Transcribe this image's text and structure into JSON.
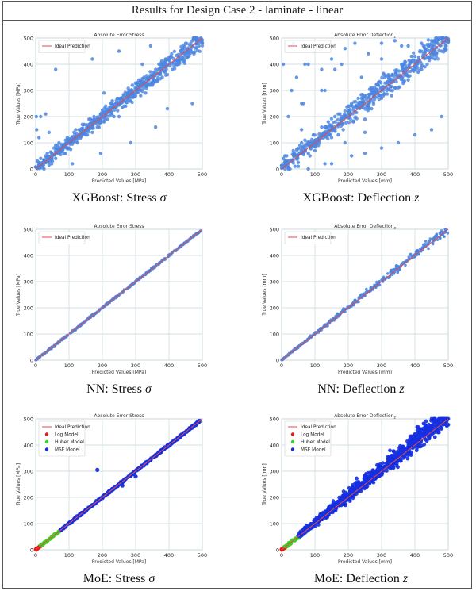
{
  "header": {
    "title": "Results for Design Case 2 - laminate - linear"
  },
  "colors": {
    "ideal": "#e8494c",
    "xgb_point": "#4c86e0",
    "nn_point": "#4c86e0",
    "log": "#e51b1b",
    "huber": "#3ecf23",
    "mse": "#1530e0",
    "grid": "#c9d9de"
  },
  "captions": [
    {
      "prefix": "XGBoost: Stress ",
      "symbol": "σ"
    },
    {
      "prefix": "XGBoost: Deflection ",
      "symbol": "z"
    },
    {
      "prefix": "NN: Stress ",
      "symbol": "σ"
    },
    {
      "prefix": "NN: Deflection ",
      "symbol": "z"
    },
    {
      "prefix": "MoE: Stress ",
      "symbol": "σ"
    },
    {
      "prefix": "MoE: Deflection ",
      "symbol": "z"
    }
  ],
  "chart_data": [
    {
      "type": "scatter",
      "title": "Absolute Error Stress",
      "xlabel": "Predicted Values [MPa]",
      "ylabel": "True Values [MPa]",
      "xlim": [
        0,
        500
      ],
      "ylim": [
        0,
        500
      ],
      "xticks": [
        0,
        100,
        200,
        300,
        400,
        500
      ],
      "yticks": [
        0,
        100,
        200,
        300,
        400,
        500
      ],
      "grid": true,
      "legend_position": "top-left",
      "series": [
        {
          "name": "Ideal Prediction",
          "kind": "line",
          "x": [
            0,
            500
          ],
          "y": [
            0,
            500
          ]
        },
        {
          "kind": "points",
          "note": "dense scatter about the diagonal, wide spread",
          "x": [
            10,
            20,
            35,
            50,
            60,
            80,
            95,
            110,
            130,
            150,
            160,
            185,
            200,
            215,
            240,
            260,
            280,
            300,
            320,
            340,
            360,
            380,
            400,
            420,
            440,
            460,
            480,
            15,
            40,
            70,
            100,
            140,
            170,
            210,
            250,
            290,
            330,
            370,
            410,
            450,
            490,
            5,
            25,
            55,
            85,
            120,
            175,
            230,
            270,
            310,
            350,
            390,
            430,
            470,
            8,
            30,
            60,
            90,
            125,
            165,
            205,
            245,
            285,
            325,
            365,
            405,
            445,
            485,
            12,
            45,
            75,
            115,
            155,
            195,
            235,
            275,
            315,
            355,
            395,
            435,
            475,
            20,
            65,
            105,
            145,
            190,
            225,
            265,
            305,
            345,
            385,
            425,
            465,
            2,
            3,
            48,
            10,
            30,
            110,
            195,
            360,
            345,
            15,
            250,
            395,
            170,
            470,
            40,
            320,
            205,
            90,
            285,
            60
          ],
          "y": [
            25,
            5,
            60,
            30,
            90,
            70,
            120,
            95,
            150,
            130,
            190,
            160,
            225,
            190,
            250,
            235,
            300,
            280,
            345,
            320,
            380,
            350,
            420,
            400,
            460,
            430,
            500,
            40,
            15,
            100,
            80,
            170,
            140,
            240,
            200,
            320,
            290,
            400,
            380,
            480,
            470,
            30,
            0,
            80,
            60,
            150,
            200,
            260,
            240,
            340,
            320,
            420,
            400,
            490,
            5,
            50,
            40,
            110,
            100,
            190,
            180,
            270,
            260,
            350,
            340,
            430,
            420,
            490,
            2,
            65,
            55,
            140,
            130,
            210,
            200,
            290,
            280,
            370,
            360,
            450,
            440,
            15,
            90,
            75,
            170,
            160,
            250,
            240,
            330,
            320,
            410,
            400,
            480,
            200,
            150,
            20,
            120,
            210,
            20,
            60,
            160,
            470,
            200,
            450,
            230,
            420,
            250,
            140,
            400,
            290,
            60,
            100,
            380
          ]
        }
      ]
    },
    {
      "type": "scatter",
      "title": "Absolute Error Deflection",
      "title_subscript": "z",
      "xlabel": "Predicted Values [mm]",
      "ylabel": "True Values [mm]",
      "xlim": [
        0,
        500
      ],
      "ylim": [
        0,
        500
      ],
      "xticks": [
        0,
        100,
        200,
        300,
        400,
        500
      ],
      "yticks": [
        0,
        100,
        200,
        300,
        400,
        500
      ],
      "grid": true,
      "legend_position": "top-left",
      "series": [
        {
          "name": "Ideal Prediction",
          "kind": "line",
          "x": [
            0,
            500
          ],
          "y": [
            0,
            500
          ]
        },
        {
          "kind": "points",
          "note": "dense scatter about the diagonal, very wide spread with many outliers",
          "x": [
            10,
            20,
            35,
            50,
            60,
            80,
            95,
            110,
            130,
            150,
            160,
            185,
            200,
            215,
            240,
            260,
            280,
            300,
            320,
            340,
            360,
            380,
            400,
            420,
            440,
            460,
            480,
            15,
            40,
            70,
            100,
            140,
            170,
            210,
            250,
            290,
            330,
            370,
            410,
            450,
            490,
            5,
            25,
            55,
            85,
            120,
            175,
            230,
            270,
            310,
            350,
            390,
            430,
            470,
            20,
            30,
            45,
            65,
            80,
            100,
            130,
            160,
            190,
            220,
            260,
            300,
            340,
            380,
            420,
            460,
            10,
            50,
            150,
            250,
            350,
            450,
            5,
            60,
            120,
            180,
            240,
            300,
            360,
            420,
            480,
            130,
            80,
            20,
            60,
            210,
            300,
            35,
            120,
            190,
            400,
            250,
            480,
            70,
            150
          ],
          "y": [
            30,
            5,
            70,
            25,
            100,
            60,
            130,
            90,
            160,
            120,
            200,
            150,
            240,
            180,
            270,
            230,
            310,
            270,
            360,
            310,
            400,
            340,
            430,
            390,
            470,
            420,
            500,
            50,
            10,
            110,
            70,
            180,
            130,
            250,
            190,
            330,
            280,
            410,
            370,
            490,
            460,
            40,
            0,
            90,
            50,
            160,
            210,
            270,
            230,
            350,
            310,
            430,
            390,
            495,
            200,
            300,
            350,
            250,
            400,
            450,
            300,
            380,
            460,
            480,
            440,
            480,
            490,
            470,
            480,
            490,
            50,
            10,
            20,
            60,
            100,
            150,
            400,
            150,
            300,
            400,
            350,
            420,
            470,
            380,
            450,
            20,
            0,
            0,
            250,
            50,
            80,
            480,
            380,
            100,
            130,
            140,
            200,
            400,
            420
          ]
        }
      ]
    },
    {
      "type": "scatter",
      "title": "Absolute Error Stress",
      "xlabel": "Predicted Values [MPa]",
      "ylabel": "True Values [MPa]",
      "xlim": [
        0,
        500
      ],
      "ylim": [
        0,
        500
      ],
      "xticks": [
        0,
        100,
        200,
        300,
        400,
        500
      ],
      "yticks": [
        0,
        100,
        200,
        300,
        400,
        500
      ],
      "grid": true,
      "legend_position": "top-left",
      "series": [
        {
          "name": "Ideal Prediction",
          "kind": "line",
          "x": [
            0,
            500
          ],
          "y": [
            0,
            500
          ]
        },
        {
          "kind": "points",
          "note": "tight cloud along the diagonal",
          "spread": 5,
          "range": [
            0,
            495
          ]
        }
      ]
    },
    {
      "type": "scatter",
      "title": "Absolute Error Deflection",
      "title_subscript": "z",
      "xlabel": "Predicted Values [mm]",
      "ylabel": "True Values [mm]",
      "xlim": [
        0,
        500
      ],
      "ylim": [
        0,
        500
      ],
      "xticks": [
        0,
        100,
        200,
        300,
        400,
        500
      ],
      "yticks": [
        0,
        100,
        200,
        300,
        400,
        500
      ],
      "grid": true,
      "legend_position": "top-left",
      "series": [
        {
          "name": "Ideal Prediction",
          "kind": "line",
          "x": [
            0,
            500
          ],
          "y": [
            0,
            500
          ]
        },
        {
          "kind": "points",
          "note": "cloud along the diagonal, spread widening with value",
          "spread_low": 3,
          "spread_high": 25,
          "range": [
            0,
            495
          ]
        }
      ]
    },
    {
      "type": "scatter",
      "title": "Absolute Error Stress",
      "xlabel": "Predicted Values [MPa]",
      "ylabel": "True Values [MPa]",
      "xlim": [
        0,
        500
      ],
      "ylim": [
        0,
        500
      ],
      "xticks": [
        0,
        100,
        200,
        300,
        400,
        500
      ],
      "yticks": [
        0,
        100,
        200,
        300,
        400,
        500
      ],
      "grid": true,
      "legend_position": "top-left",
      "series": [
        {
          "name": "Ideal Prediction",
          "kind": "line",
          "x": [
            0,
            500
          ],
          "y": [
            0,
            500
          ]
        },
        {
          "name": "Log Model",
          "kind": "points",
          "range": [
            0,
            20
          ],
          "spread": 3
        },
        {
          "name": "Huber Model",
          "kind": "points",
          "range": [
            15,
            90
          ],
          "spread": 5
        },
        {
          "name": "MSE Model",
          "kind": "points",
          "range": [
            75,
            495
          ],
          "spread": 6,
          "outliers": [
            [
              185,
              305
            ],
            [
              260,
              245
            ],
            [
              300,
              280
            ]
          ]
        }
      ]
    },
    {
      "type": "scatter",
      "title": "Absolute Error Deflection",
      "title_subscript": "z",
      "xlabel": "Predicted Values [mm]",
      "ylabel": "True Values [mm]",
      "xlim": [
        0,
        500
      ],
      "ylim": [
        0,
        500
      ],
      "xticks": [
        0,
        100,
        200,
        300,
        400,
        500
      ],
      "yticks": [
        0,
        100,
        200,
        300,
        400,
        500
      ],
      "grid": true,
      "legend_position": "top-left",
      "series": [
        {
          "name": "Ideal Prediction",
          "kind": "line",
          "x": [
            0,
            500
          ],
          "y": [
            0,
            500
          ]
        },
        {
          "name": "Log Model",
          "kind": "points",
          "range": [
            0,
            15
          ],
          "spread": 3
        },
        {
          "name": "Huber Model",
          "kind": "points",
          "range": [
            10,
            80
          ],
          "spread": 10
        },
        {
          "name": "MSE Model",
          "kind": "points",
          "range": [
            50,
            495
          ],
          "spread_low": 8,
          "spread_high": 60,
          "bias_up": true
        }
      ]
    }
  ]
}
